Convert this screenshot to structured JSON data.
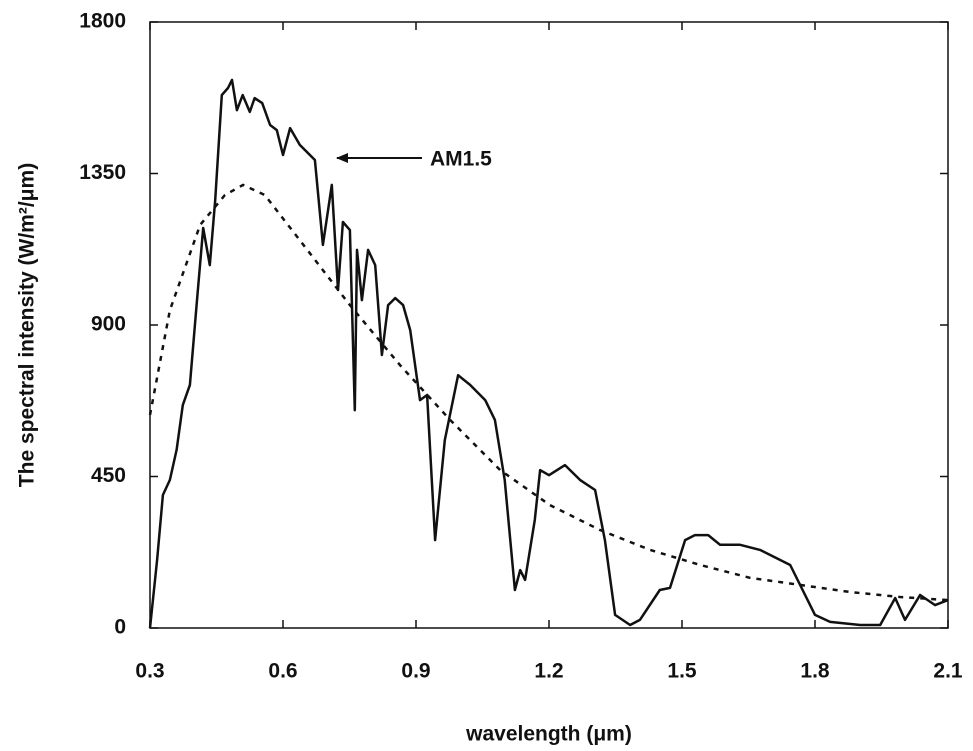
{
  "chart_data": {
    "type": "line",
    "xlabel": "wavelength (μm)",
    "ylabel": "The spectral intensity  (W/m²/μm)",
    "annotation": "AM1.5",
    "xlim": [
      0.3,
      2.1
    ],
    "xticks": [
      0.3,
      0.6,
      0.9,
      1.2,
      1.5,
      1.8,
      2.1
    ],
    "ylim": [
      0,
      1800
    ],
    "yticks": [
      0,
      450,
      900,
      1350,
      1800
    ],
    "grid": false,
    "series": [
      {
        "color": "#111111",
        "dash": false,
        "x": [
          0.3,
          0.316,
          0.329,
          0.345,
          0.36,
          0.374,
          0.39,
          0.406,
          0.42,
          0.435,
          0.447,
          0.462,
          0.476,
          0.485,
          0.496,
          0.509,
          0.525,
          0.536,
          0.553,
          0.571,
          0.586,
          0.6,
          0.616,
          0.638,
          0.672,
          0.69,
          0.71,
          0.724,
          0.735,
          0.751,
          0.762,
          0.767,
          0.778,
          0.792,
          0.808,
          0.823,
          0.837,
          0.853,
          0.871,
          0.887,
          0.909,
          0.925,
          0.943,
          0.965,
          0.995,
          1.022,
          1.056,
          1.078,
          1.1,
          1.123,
          1.135,
          1.146,
          1.168,
          1.18,
          1.2,
          1.236,
          1.27,
          1.304,
          1.326,
          1.349,
          1.383,
          1.405,
          1.45,
          1.473,
          1.507,
          1.529,
          1.559,
          1.586,
          1.631,
          1.676,
          1.744,
          1.8,
          1.834,
          1.902,
          1.947,
          1.981,
          2.003,
          2.037,
          2.071,
          2.1
        ],
        "values": [
          0,
          202,
          395,
          440,
          529,
          662,
          722,
          974,
          1188,
          1078,
          1271,
          1583,
          1604,
          1628,
          1538,
          1583,
          1533,
          1574,
          1559,
          1494,
          1479,
          1405,
          1485,
          1435,
          1390,
          1138,
          1316,
          1004,
          1206,
          1182,
          647,
          1123,
          974,
          1123,
          1078,
          811,
          959,
          980,
          959,
          885,
          677,
          692,
          261,
          558,
          751,
          722,
          677,
          618,
          440,
          113,
          172,
          143,
          321,
          469,
          454,
          484,
          440,
          410,
          261,
          39,
          9,
          24,
          113,
          119,
          261,
          276,
          276,
          247,
          247,
          232,
          187,
          39,
          18,
          9,
          9,
          89,
          24,
          98,
          68,
          83
        ]
      },
      {
        "color": "#111111",
        "dash": true,
        "x": [
          0.3,
          0.345,
          0.413,
          0.469,
          0.51,
          0.559,
          0.638,
          0.751,
          0.864,
          0.977,
          1.09,
          1.202,
          1.315,
          1.428,
          1.541,
          1.653,
          1.766,
          1.879,
          1.992,
          2.1
        ],
        "values": [
          633,
          944,
          1197,
          1286,
          1316,
          1286,
          1152,
          959,
          781,
          618,
          469,
          365,
          291,
          232,
          187,
          149,
          128,
          107,
          92,
          83
        ]
      }
    ]
  }
}
